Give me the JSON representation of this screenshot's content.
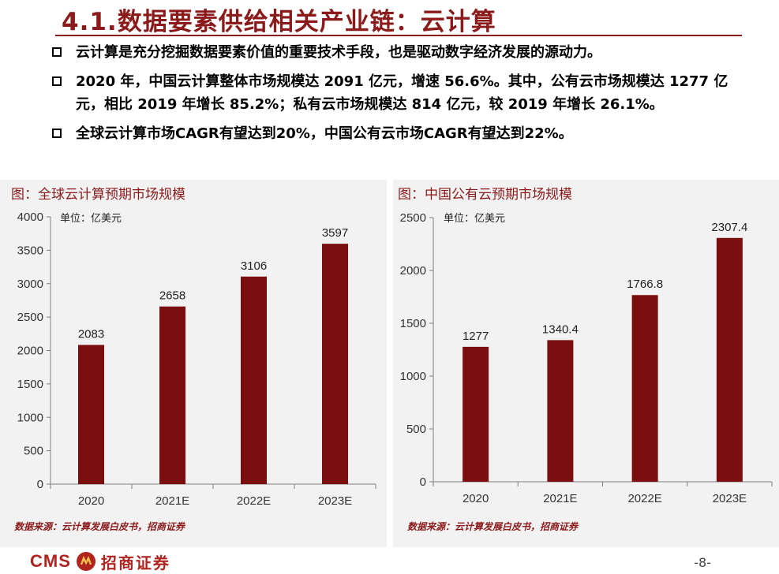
{
  "header": {
    "title": "4.1.数据要素供给相关产业链：云计算"
  },
  "bullets": [
    "云计算是充分挖掘数据要素价值的重要技术手段，也是驱动数字经济发展的源动力。",
    "2020 年，中国云计算整体市场规模达 2091 亿元，增速 56.6%。其中，公有云市场规模达 1277 亿元，相比 2019 年增长 85.2%；私有云市场规模达 814 亿元，较 2019 年增长 26.1%。",
    "全球云计算市场CAGR有望达到20%，中国公有云市场CAGR有望达到22%。"
  ],
  "chart_data": [
    {
      "type": "bar",
      "title": "图：全球云计算预期市场规模",
      "unit_note": "单位：亿美元",
      "categories": [
        "2020",
        "2021E",
        "2022E",
        "2023E"
      ],
      "values": [
        2083,
        2658,
        3106,
        3597
      ],
      "value_labels": [
        "2083",
        "2658",
        "3106",
        "3597"
      ],
      "ylim": [
        0,
        4000
      ],
      "yticks": [
        0,
        500,
        1000,
        1500,
        2000,
        2500,
        3000,
        3500,
        4000
      ],
      "bar_color": "#7b0f0f",
      "source": "数据来源：云计算发展白皮书，招商证券"
    },
    {
      "type": "bar",
      "title": "图：中国公有云预期市场规模",
      "unit_note": "单位：亿美元",
      "categories": [
        "2020",
        "2021E",
        "2022E",
        "2023E"
      ],
      "values": [
        1277,
        1340.4,
        1766.8,
        2307.4
      ],
      "value_labels": [
        "1277",
        "1340.4",
        "1766.8",
        "2307.4"
      ],
      "ylim": [
        0,
        2500
      ],
      "yticks": [
        0,
        500,
        1000,
        1500,
        2000,
        2500
      ],
      "bar_color": "#7b0f0f",
      "source": "数据来源：云计算发展白皮书，招商证券"
    }
  ],
  "footer": {
    "logo_latin": "CMS",
    "logo_cn": "招商证券",
    "page": "-8-"
  }
}
